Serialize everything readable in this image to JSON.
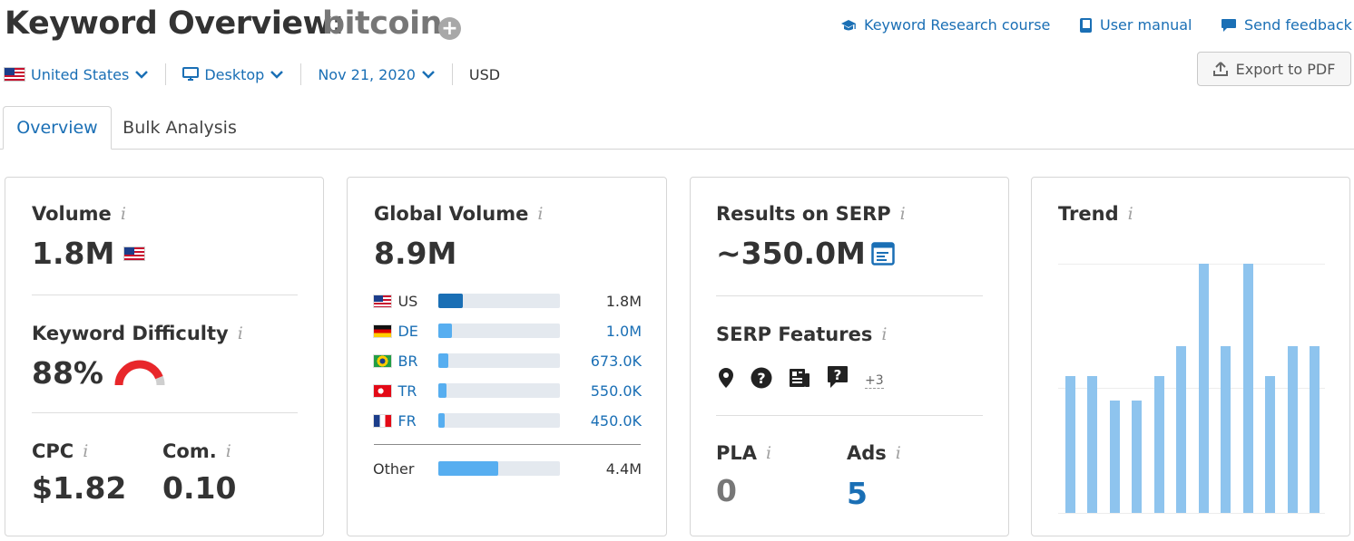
{
  "header": {
    "title": "Keyword Overview:",
    "keyword": "bitcoin",
    "add_icon": "plus-circle-icon"
  },
  "links": {
    "course": "Keyword Research course",
    "manual": "User manual",
    "feedback": "Send feedback"
  },
  "filters": {
    "country": "United States",
    "device": "Desktop",
    "date": "Nov 21, 2020",
    "currency": "USD"
  },
  "export_label": "Export to PDF",
  "tabs": [
    {
      "label": "Overview",
      "active": true
    },
    {
      "label": "Bulk Analysis",
      "active": false
    }
  ],
  "volume_card": {
    "title": "Volume",
    "value": "1.8M",
    "kd_title": "Keyword Difficulty",
    "kd_value": "88%",
    "kd_percent": 88,
    "cpc_title": "CPC",
    "cpc_value": "$1.82",
    "com_title": "Com.",
    "com_value": "0.10"
  },
  "global_card": {
    "title": "Global Volume",
    "value": "8.9M",
    "rows": [
      {
        "code": "US",
        "value": "1.8M",
        "share": 0.2
      },
      {
        "code": "DE",
        "value": "1.0M",
        "share": 0.11
      },
      {
        "code": "BR",
        "value": "673.0K",
        "share": 0.08
      },
      {
        "code": "TR",
        "value": "550.0K",
        "share": 0.065
      },
      {
        "code": "FR",
        "value": "450.0K",
        "share": 0.05
      }
    ],
    "other": {
      "label": "Other",
      "value": "4.4M",
      "share": 0.49
    }
  },
  "serp_card": {
    "title": "Results on SERP",
    "value": "~350.0M",
    "features_title": "SERP Features",
    "feature_icons": [
      "map-pin-icon",
      "question-circle-icon",
      "news-icon",
      "question-bubble-icon"
    ],
    "more": "+3",
    "pla_title": "PLA",
    "pla_value": "0",
    "ads_title": "Ads",
    "ads_value": "5"
  },
  "trend_card": {
    "title": "Trend",
    "values": [
      0.55,
      0.55,
      0.45,
      0.45,
      0.55,
      0.67,
      1.0,
      0.67,
      1.0,
      0.55,
      0.67,
      0.67
    ]
  },
  "colors": {
    "link": "#1a6fb5",
    "bar": "#57aef0",
    "trend_bar": "#8ec4ee",
    "kd_red": "#e8262a"
  }
}
